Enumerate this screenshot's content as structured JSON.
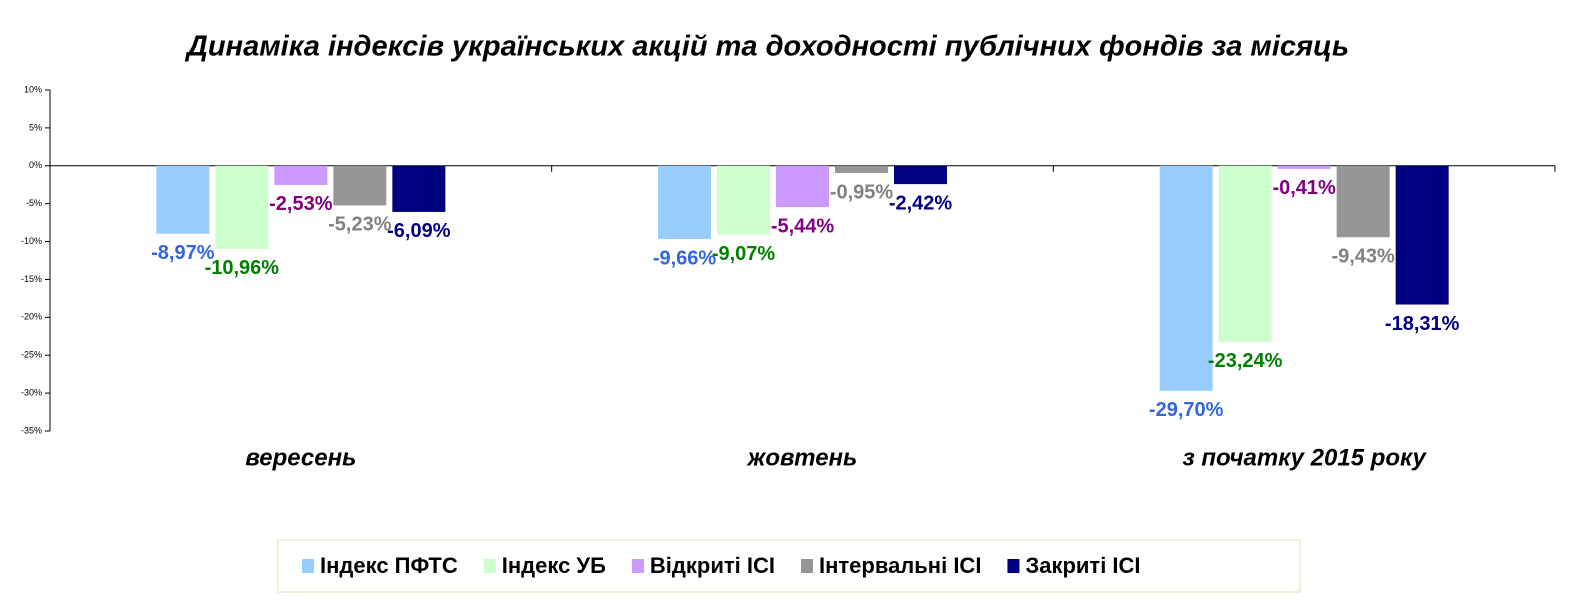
{
  "chart_data": {
    "type": "bar",
    "title": "Динаміка індексів українських акцій та доходності публічних фондів за місяць",
    "categories": [
      "вересень",
      "жовтень",
      "з початку 2015 року"
    ],
    "series": [
      {
        "name": "Індекс ПФТС",
        "color": "#99ccff",
        "label_color": "#3366dd",
        "values": [
          -8.97,
          -9.66,
          -29.7
        ],
        "value_labels": [
          "-8,97%",
          "-9,66%",
          "-29,70%"
        ]
      },
      {
        "name": "Індекс УБ",
        "color": "#ccffcc",
        "label_color": "#008000",
        "values": [
          -10.96,
          -9.07,
          -23.24
        ],
        "value_labels": [
          "-10,96%",
          "-9,07%",
          "-23,24%"
        ]
      },
      {
        "name": "Відкриті ІСІ",
        "color": "#cc99ff",
        "label_color": "#800080",
        "values": [
          -2.53,
          -5.44,
          -0.41
        ],
        "value_labels": [
          "-2,53%",
          "-5,44%",
          "-0,41%"
        ]
      },
      {
        "name": "Інтервальні ІСІ",
        "color": "#969696",
        "label_color": "#808080",
        "values": [
          -5.23,
          -0.95,
          -9.43
        ],
        "value_labels": [
          "-5,23%",
          "-0,95%",
          "-9,43%"
        ]
      },
      {
        "name": "Закриті ІСІ",
        "color": "#000080",
        "label_color": "#000080",
        "values": [
          -6.09,
          -2.42,
          -18.31
        ],
        "value_labels": [
          "-6,09%",
          "-2,42%",
          "-18,31%"
        ]
      }
    ],
    "ylim": [
      -35,
      10
    ],
    "yticks": [
      {
        "value": -35,
        "label": "-35%"
      },
      {
        "value": -30,
        "label": "-30%"
      },
      {
        "value": -25,
        "label": "-25%"
      },
      {
        "value": -20,
        "label": "-20%"
      },
      {
        "value": -15,
        "label": "-15%"
      },
      {
        "value": -10,
        "label": "-10%"
      },
      {
        "value": -5,
        "label": "-5%"
      },
      {
        "value": 0,
        "label": "0%"
      },
      {
        "value": 5,
        "label": "5%"
      },
      {
        "value": 10,
        "label": "10%"
      }
    ],
    "grid": false,
    "legend": "bottom"
  }
}
